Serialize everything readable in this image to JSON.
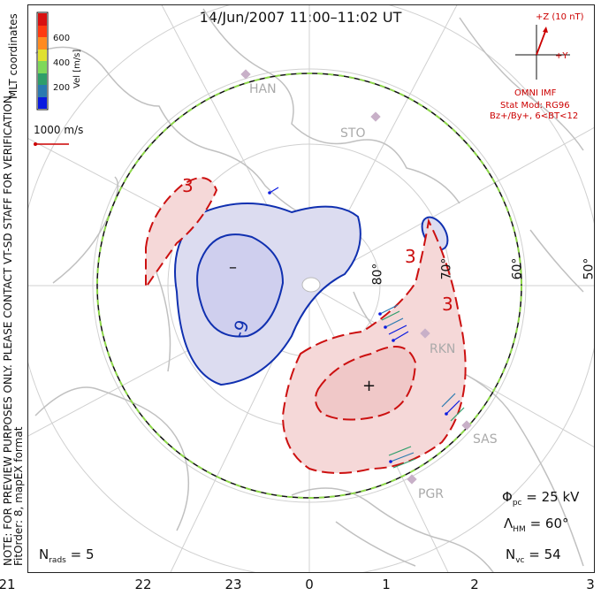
{
  "title": "14/Jun/2007  11:00–11:02 UT",
  "colorbar": {
    "unit_label": "Vel [m/s]",
    "tick_labels": [
      "600",
      "400",
      "200"
    ],
    "colors": [
      "#0a1ae0",
      "#2a7ab0",
      "#2e9e6a",
      "#7ed85a",
      "#e0e030",
      "#ff8a20",
      "#ff3a10",
      "#d81010"
    ]
  },
  "coordinates_label": "MLT coordinates",
  "notice_line1": "NOTE: FOR PREVIEW PURPOSES ONLY. PLEASE CONTACT VT-SD STAFF FOR VERIFICATION.",
  "notice_line2": "FitOrder: 8, mapEX format",
  "scale_vector_label": "1000 m/s",
  "imf": {
    "z_label": "+Z (10 nT)",
    "y_label": "+Y",
    "source": "OMNI IMF",
    "model": "Stat Mod: RG96",
    "condition": "Bz+/By+, 6<BT<12"
  },
  "stats": {
    "phi_pc": "= 25 kV",
    "lambda_hm": "= 60°",
    "n_vc": "= 54",
    "n_rads": "= 5"
  },
  "latitude_labels": [
    "80°",
    "70°",
    "60°",
    "50°"
  ],
  "site_labels": [
    "HAN",
    "STO",
    "RKN",
    "SAS",
    "PGR"
  ],
  "contour_labels": {
    "neg": "-9",
    "pos1": "3",
    "pos2": "3",
    "pos3": "3",
    "neg_sign": "–",
    "pos_sign": "+"
  },
  "mlt_ticks": [
    "21",
    "22",
    "23",
    "0",
    "1",
    "2",
    "3"
  ],
  "colors": {
    "negative_contour": "#1030b0",
    "positive_contour": "#cc1010",
    "negative_fill": "#dcdcf0",
    "positive_fill": "#f5d8d8",
    "hm_boundary_dash": "#8ed84a",
    "coast": "#c0c0c0",
    "grid": "#cfcfcf"
  }
}
